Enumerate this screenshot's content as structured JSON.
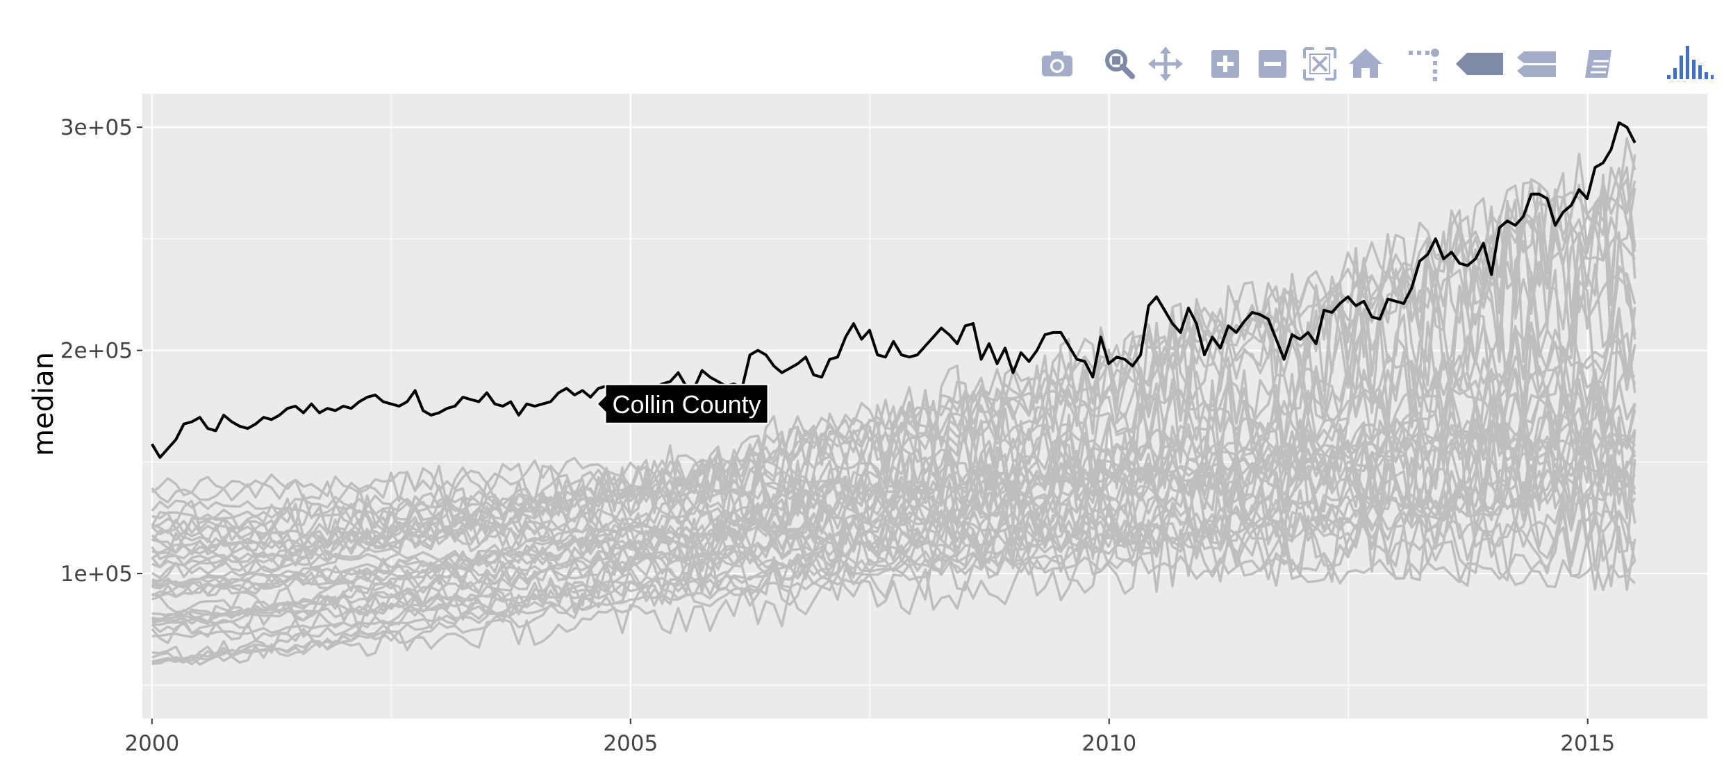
{
  "colors": {
    "panel_bg": "#EBEBEB",
    "grid": "#FFFFFF",
    "highlight_line": "#000000",
    "other_lines": "#BEBEBE",
    "modebar_icon": "#A3ACC8",
    "modebar_active": "#7F8AA7",
    "plotly_logo": "#3F6FC7"
  },
  "modebar": {
    "buttons": [
      {
        "name": "download-plot-button",
        "icon": "camera-icon"
      },
      {
        "name": "zoom-button",
        "icon": "magnifier-icon",
        "active": true
      },
      {
        "name": "pan-button",
        "icon": "move-icon"
      },
      {
        "name": "zoom-in-button",
        "icon": "plus-square-icon"
      },
      {
        "name": "zoom-out-button",
        "icon": "minus-square-icon"
      },
      {
        "name": "autoscale-button",
        "icon": "autoscale-icon"
      },
      {
        "name": "reset-axes-button",
        "icon": "home-icon"
      },
      {
        "name": "toggle-spike-lines-button",
        "icon": "spikeline-icon"
      },
      {
        "name": "show-closest-button",
        "icon": "tag-single-icon",
        "active": true
      },
      {
        "name": "compare-data-button",
        "icon": "tag-double-icon"
      },
      {
        "name": "edit-in-chart-studio-button",
        "icon": "pencil-book-icon"
      },
      {
        "name": "plotly-logo-link",
        "icon": "plotly-bars-icon"
      }
    ]
  },
  "chart_data": {
    "type": "line",
    "title": "",
    "xlabel": "",
    "ylabel": "median",
    "xlim": [
      1999.9,
      2016.25
    ],
    "ylim": [
      35000,
      315000
    ],
    "x_ticks": [
      2000,
      2005,
      2010,
      2015
    ],
    "x_tick_labels": [
      "2000",
      "2005",
      "2010",
      "2015"
    ],
    "y_ticks": [
      100000,
      200000,
      300000
    ],
    "y_tick_labels": [
      "1e+05",
      "2e+05",
      "3e+05"
    ],
    "grid": true,
    "legend": "none",
    "x_start": 2000.0,
    "x_step": 0.0833,
    "series": [
      {
        "name": "Collin County",
        "highlight": true,
        "values": [
          158000,
          152000,
          156000,
          160000,
          167000,
          168000,
          170000,
          165000,
          164000,
          171000,
          168000,
          166000,
          165000,
          167000,
          170000,
          169000,
          171000,
          174000,
          175000,
          172000,
          176000,
          172000,
          174000,
          173000,
          175000,
          174000,
          177000,
          179000,
          180000,
          177000,
          176000,
          175000,
          177000,
          182000,
          173000,
          171000,
          172000,
          174000,
          175000,
          179000,
          178000,
          177000,
          181000,
          176000,
          175000,
          177000,
          171000,
          176000,
          175000,
          176000,
          177000,
          181000,
          183000,
          180000,
          182000,
          179000,
          183000,
          184000,
          181000,
          180000,
          178000,
          182000,
          184000,
          183000,
          185000,
          186000,
          190000,
          184000,
          183000,
          191000,
          188000,
          186000,
          184000,
          185000,
          183000,
          198000,
          200000,
          198000,
          193000,
          190000,
          192000,
          194000,
          197000,
          189000,
          188000,
          196000,
          197000,
          206000,
          212000,
          205000,
          209000,
          198000,
          197000,
          204000,
          198000,
          197000,
          198000,
          202000,
          206000,
          210000,
          207000,
          203000,
          211000,
          212000,
          196000,
          203000,
          194000,
          201000,
          190000,
          199000,
          195000,
          200000,
          207000,
          208000,
          208000,
          202000,
          196000,
          195000,
          188000,
          206000,
          194000,
          197000,
          196000,
          193000,
          198000,
          220000,
          224000,
          218000,
          212000,
          208000,
          219000,
          212000,
          198000,
          206000,
          201000,
          211000,
          208000,
          213000,
          217000,
          216000,
          214000,
          205000,
          196000,
          207000,
          205000,
          208000,
          203000,
          218000,
          217000,
          221000,
          224000,
          220000,
          222000,
          215000,
          214000,
          223000,
          222000,
          221000,
          228000,
          240000,
          243000,
          250000,
          241000,
          244000,
          239000,
          238000,
          241000,
          248000,
          234000,
          255000,
          258000,
          256000,
          260000,
          270000,
          270000,
          268000,
          256000,
          262000,
          265000,
          272000,
          268000,
          282000,
          284000,
          290000,
          302000,
          300000,
          293000
        ]
      }
    ],
    "background_series_summary": {
      "count": 40,
      "color": "#BEBEBE",
      "range_2000": [
        60000,
        140000
      ],
      "range_2015": [
        95000,
        285000
      ],
      "note_values": "Other county median series, drawn in grey; typical values rise from about 60k–140k in 2000 to about 100k–280k in 2015."
    },
    "hover_label": {
      "text": "Collin County",
      "x": 2004.65,
      "y": 176000
    }
  }
}
